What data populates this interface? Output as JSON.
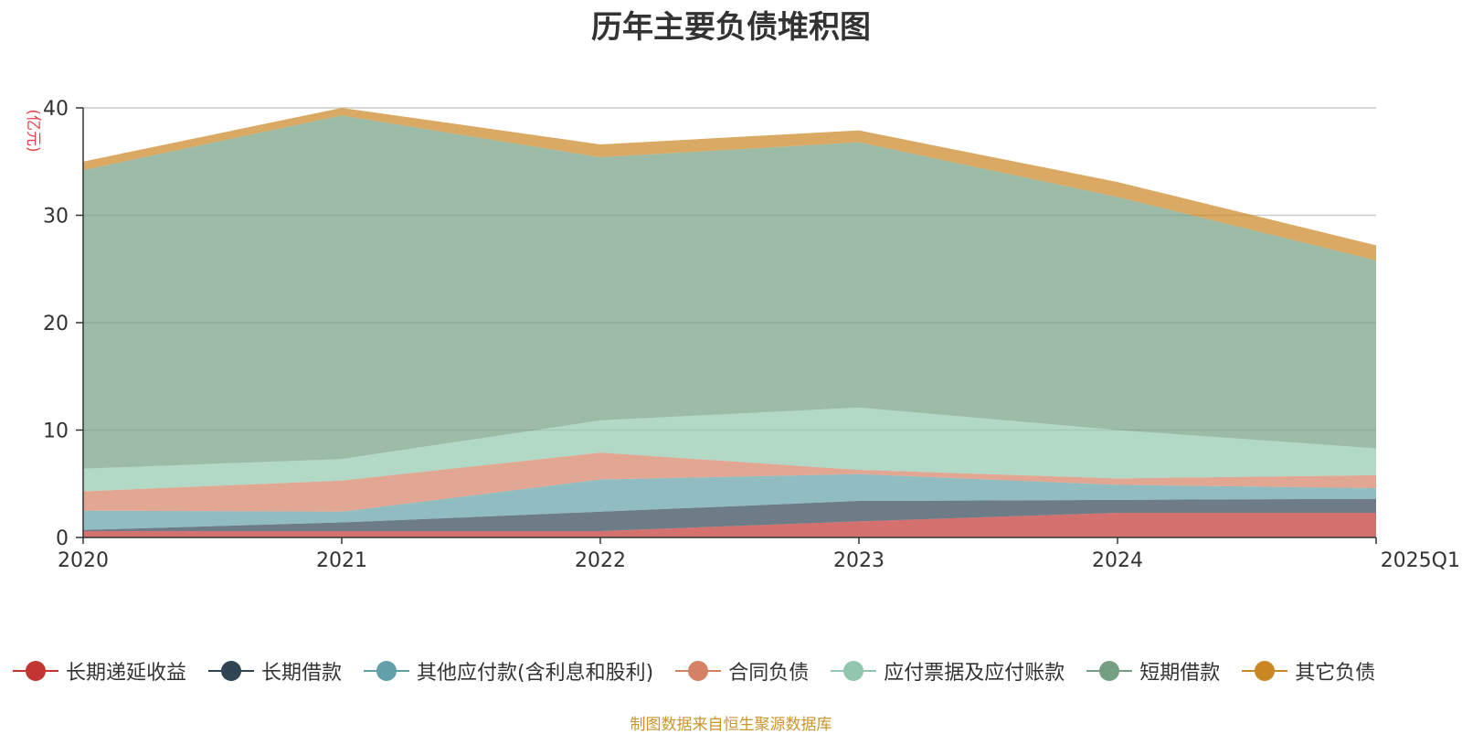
{
  "chart_data": {
    "type": "area",
    "stacked": true,
    "title": "历年主要负债堆积图",
    "ylabel": "(亿元)",
    "ylim": [
      0,
      40
    ],
    "yticks": [
      0,
      10,
      20,
      30,
      40
    ],
    "categories": [
      "2020",
      "2021",
      "2022",
      "2023",
      "2024",
      "2025Q1"
    ],
    "grid": true,
    "legend_position": "bottom",
    "series": [
      {
        "name": "长期递延收益",
        "color": "#c23531",
        "values": [
          0.6,
          0.6,
          0.6,
          1.5,
          2.3,
          2.3
        ]
      },
      {
        "name": "长期借款",
        "color": "#2f4554",
        "values": [
          0.1,
          0.8,
          1.8,
          1.9,
          1.2,
          1.3
        ]
      },
      {
        "name": "其他应付款(含利息和股利)",
        "color": "#61a0a8",
        "values": [
          1.8,
          1.0,
          3.0,
          2.5,
          1.4,
          1.0
        ]
      },
      {
        "name": "合同负债",
        "color": "#d48265",
        "values": [
          1.8,
          2.9,
          2.5,
          0.4,
          0.6,
          1.2
        ]
      },
      {
        "name": "应付票据及应付账款",
        "color": "#91c7ae",
        "values": [
          2.1,
          2.0,
          3.0,
          5.8,
          4.5,
          2.5
        ]
      },
      {
        "name": "短期借款",
        "color": "#749f83",
        "values": [
          27.8,
          32.0,
          24.5,
          24.7,
          21.7,
          17.5
        ]
      },
      {
        "name": "其它负债",
        "color": "#ca8622",
        "values": [
          0.8,
          0.7,
          1.2,
          1.1,
          1.4,
          1.4
        ]
      }
    ]
  },
  "footer": {
    "source": "制图数据来自恒生聚源数据库"
  }
}
